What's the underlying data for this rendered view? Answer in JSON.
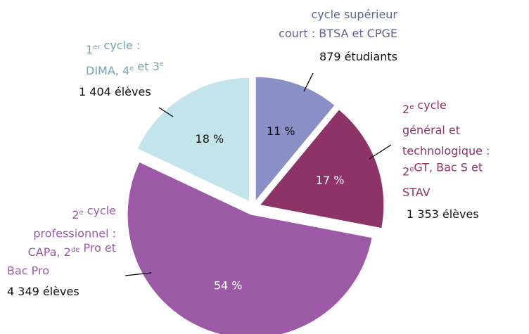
{
  "chart_data": {
    "type": "pie",
    "categories": [
      [
        [
          {
            "text": "cycle supérieur"
          }
        ],
        [
          {
            "text": "court : BTSA et CPGE"
          }
        ]
      ],
      [
        [
          {
            "text": "2"
          },
          {
            "sup": "e"
          },
          {
            "text": " cycle"
          }
        ],
        [
          {
            "text": "général et"
          }
        ],
        [
          {
            "text": "technologique :"
          }
        ],
        [
          {
            "text": "2"
          },
          {
            "sup": "e"
          },
          {
            "text": "GT, Bac S et"
          }
        ],
        [
          {
            "text": "STAV"
          }
        ]
      ],
      [
        [
          {
            "text": "2"
          },
          {
            "sup": "e"
          },
          {
            "text": " cycle"
          }
        ],
        [
          {
            "text": "professionnel :"
          }
        ],
        [
          {
            "text": "CAPa, 2"
          },
          {
            "sup": "de"
          },
          {
            "text": " Pro et"
          }
        ],
        [
          {
            "text": "Bac Pro"
          }
        ]
      ],
      [
        [
          {
            "text": "1"
          },
          {
            "sup": "er"
          },
          {
            "text": " cycle :"
          }
        ],
        [
          {
            "text": "DIMA, 4"
          },
          {
            "sup": "e"
          },
          {
            "text": " et 3"
          },
          {
            "sup": "e"
          }
        ]
      ]
    ],
    "counts": [
      "879 étudiants",
      "1 353 élèves",
      "4 349 élèves",
      "1 404 élèves"
    ],
    "values": [
      11,
      17,
      54,
      18
    ],
    "value_labels": [
      "11 %",
      "17 %",
      "54 %",
      "18 %"
    ],
    "colors": [
      "#8a8fc6",
      "#8e3368",
      "#9b59a6",
      "#c2e4ea"
    ],
    "label_colors": [
      "#5f6398",
      "#8e3368",
      "#9b59a6",
      "#6fa3ad"
    ]
  }
}
